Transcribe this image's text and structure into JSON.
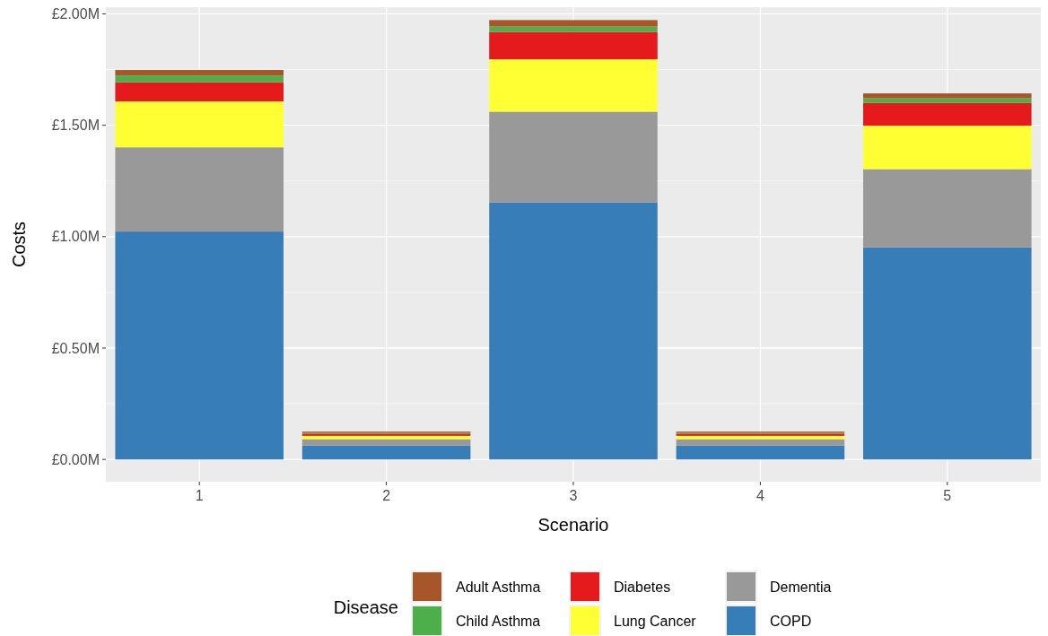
{
  "chart_data": {
    "type": "bar",
    "stacked": true,
    "xlabel": "Scenario",
    "ylabel": "Costs",
    "legend_title": "Disease",
    "legend": "bottom",
    "grid": true,
    "categories": [
      "1",
      "2",
      "3",
      "4",
      "5"
    ],
    "ylim": [
      -0.1,
      2.03
    ],
    "yticks": [
      {
        "value": 0,
        "label": "£0.00M"
      },
      {
        "value": 0.5,
        "label": "£0.50M"
      },
      {
        "value": 1,
        "label": "£1.00M"
      },
      {
        "value": 1.5,
        "label": "£1.50M"
      },
      {
        "value": 2,
        "label": "£2.00M"
      }
    ],
    "series": [
      {
        "name": "COPD",
        "color": "#377eb8",
        "values": [
          1.023,
          0.062,
          1.154,
          0.062,
          0.952
        ]
      },
      {
        "name": "Dementia",
        "color": "#999999",
        "values": [
          0.378,
          0.029,
          0.407,
          0.029,
          0.351
        ]
      },
      {
        "name": "Lung Cancer",
        "color": "#ffff33",
        "values": [
          0.206,
          0.015,
          0.235,
          0.015,
          0.195
        ]
      },
      {
        "name": "Diabetes",
        "color": "#e41a1c",
        "values": [
          0.086,
          0.01,
          0.123,
          0.01,
          0.102
        ]
      },
      {
        "name": "Child Asthma",
        "color": "#4daf4a",
        "values": [
          0.03,
          0.004,
          0.024,
          0.004,
          0.021
        ]
      },
      {
        "name": "Adult Asthma",
        "color": "#a65628",
        "values": [
          0.025,
          0.005,
          0.029,
          0.005,
          0.022
        ]
      }
    ]
  }
}
